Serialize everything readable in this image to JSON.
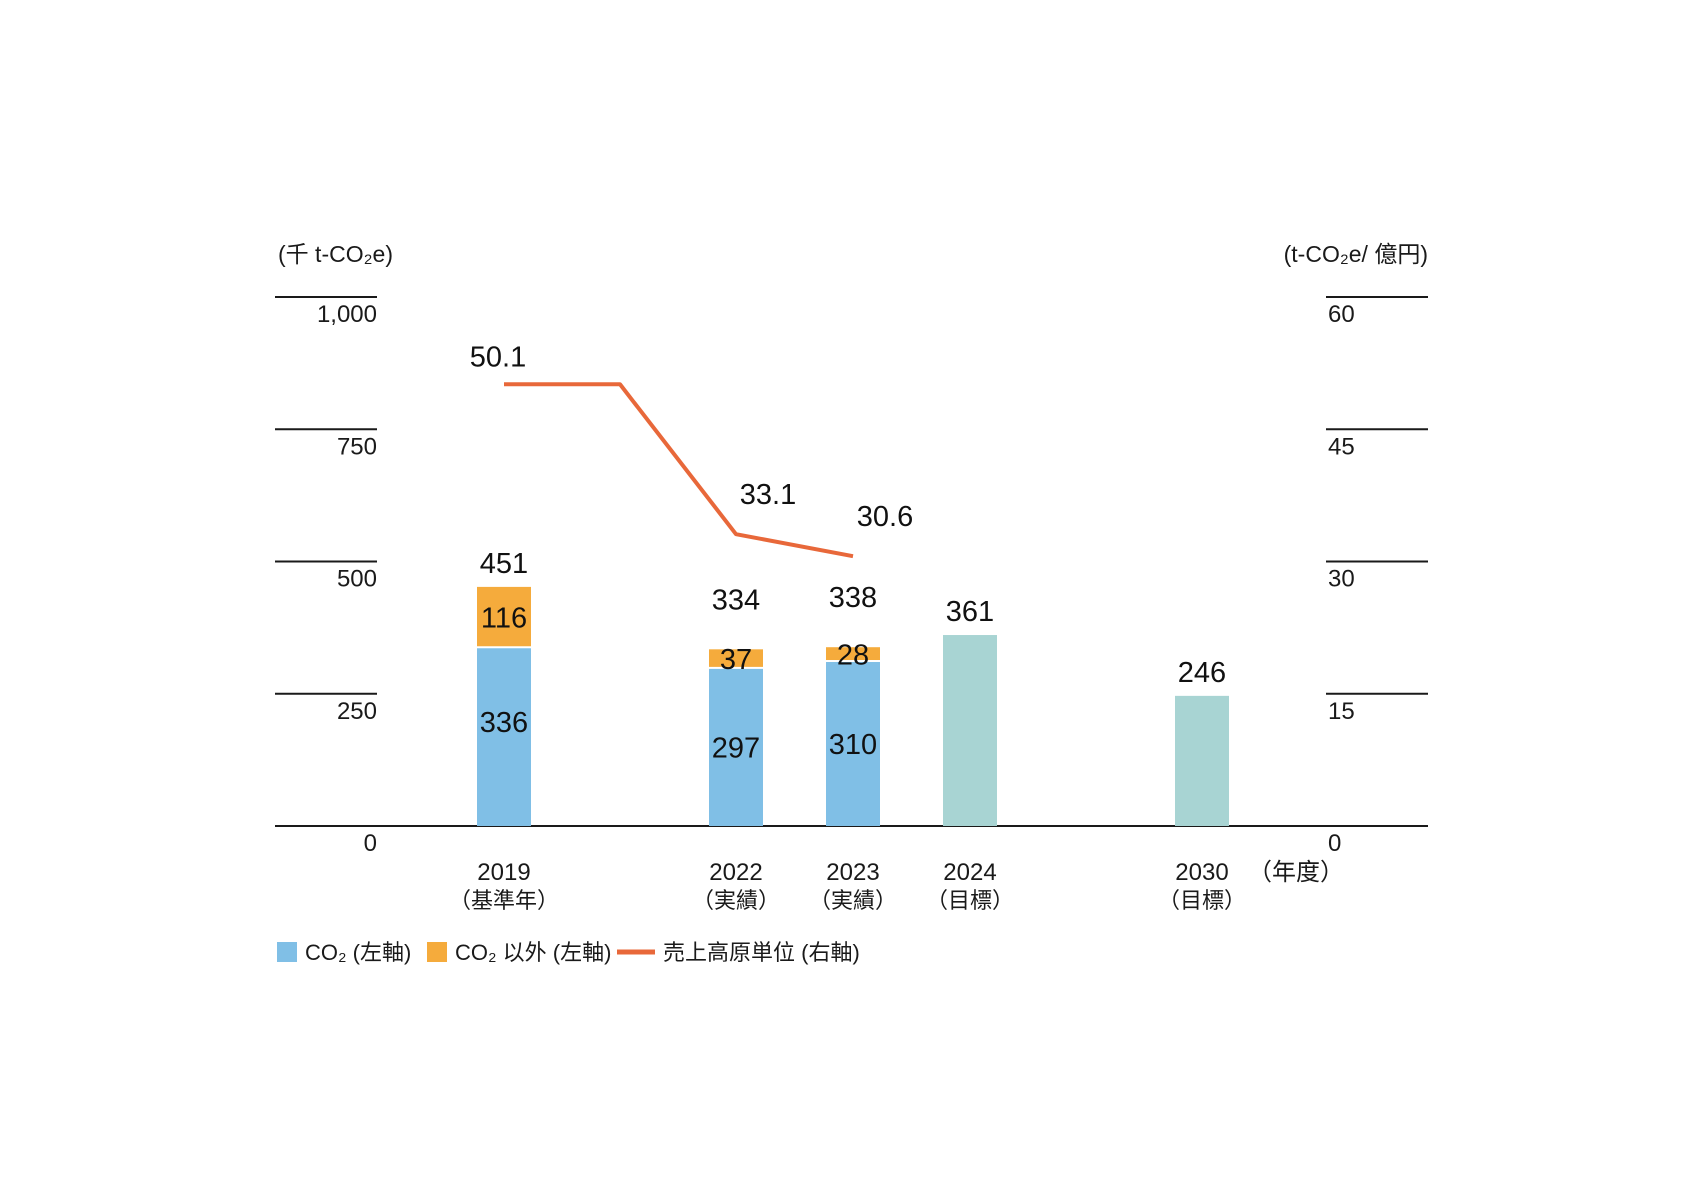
{
  "chart_data": {
    "type": "bar",
    "y_left_unit": "(千 t-CO₂e)",
    "y_right_unit": "(t-CO₂e/ 億円)",
    "x_unit": "（年度）",
    "y_left_ticks": [
      "0",
      "250",
      "500",
      "750",
      "1,000"
    ],
    "y_left_tick_values": [
      0,
      250,
      500,
      750,
      1000
    ],
    "y_right_ticks": [
      "0",
      "15",
      "30",
      "45",
      "60"
    ],
    "y_right_tick_values": [
      0,
      15,
      30,
      45,
      60
    ],
    "ylim_left": [
      0,
      1000
    ],
    "ylim_right": [
      0,
      60
    ],
    "categories": [
      {
        "year": "2019",
        "note": "（基準年）"
      },
      {
        "year": "2022",
        "note": "（実績）"
      },
      {
        "year": "2023",
        "note": "（実績）"
      },
      {
        "year": "2024",
        "note": "（目標）"
      },
      {
        "year": "2030",
        "note": "（目標）"
      }
    ],
    "stacked_series": [
      {
        "name": "CO₂ (左軸)",
        "color": "#80bfe6",
        "values": [
          336,
          297,
          310,
          null,
          null
        ],
        "labels": [
          "336",
          "297",
          "310",
          "",
          ""
        ]
      },
      {
        "name": "CO₂ 以外 (左軸)",
        "color": "#f5ab3c",
        "values": [
          116,
          37,
          28,
          null,
          null
        ],
        "labels": [
          "116",
          "37",
          "28",
          "",
          ""
        ]
      }
    ],
    "target_series": {
      "color": "#a8d4d3",
      "values": [
        null,
        null,
        null,
        361,
        246
      ]
    },
    "totals": [
      "451",
      "334",
      "338",
      "361",
      "246"
    ],
    "total_values": [
      451,
      334,
      338,
      361,
      246
    ],
    "line_series": {
      "name": "売上高原単位 (右軸)",
      "color": "#e8683a",
      "points": [
        {
          "x": "2019",
          "y": 50.1,
          "label": "50.1"
        },
        {
          "x": "2020",
          "y": 50.1,
          "label": ""
        },
        {
          "x": "2022",
          "y": 33.1,
          "label": "33.1"
        },
        {
          "x": "2023",
          "y": 30.6,
          "label": "30.6"
        }
      ]
    },
    "legend": [
      {
        "label": "CO₂ (左軸)",
        "color": "#80bfe6",
        "kind": "box"
      },
      {
        "label": "CO₂ 以外 (左軸)",
        "color": "#f5ab3c",
        "kind": "box"
      },
      {
        "label": "売上高原単位 (右軸)",
        "color": "#e8683a",
        "kind": "line"
      }
    ],
    "legend_position": "bottom-left",
    "grid": true
  }
}
